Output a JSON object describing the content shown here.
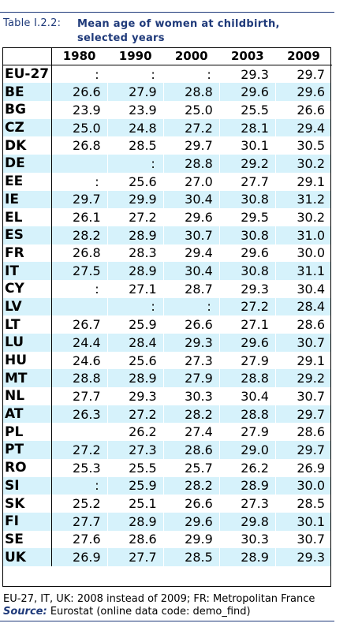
{
  "caption": {
    "label": "Table I.2.2:",
    "title": "Mean age of women at childbirth, selected years"
  },
  "table": {
    "columns": [
      "1980",
      "1990",
      "2000",
      "2003",
      "2009"
    ],
    "rows": [
      {
        "country": "EU-27",
        "values": [
          ":",
          ":",
          ":",
          "29.3",
          "29.7"
        ]
      },
      {
        "country": "BE",
        "values": [
          "26.6",
          "27.9",
          "28.8",
          "29.6",
          "29.6"
        ]
      },
      {
        "country": "BG",
        "values": [
          "23.9",
          "23.9",
          "25.0",
          "25.5",
          "26.6"
        ]
      },
      {
        "country": "CZ",
        "values": [
          "25.0",
          "24.8",
          "27.2",
          "28.1",
          "29.4"
        ]
      },
      {
        "country": "DK",
        "values": [
          "26.8",
          "28.5",
          "29.7",
          "30.1",
          "30.5"
        ]
      },
      {
        "country": "DE",
        "values": [
          "",
          ":",
          "28.8",
          "29.2",
          "30.2"
        ]
      },
      {
        "country": "EE",
        "values": [
          ":",
          "25.6",
          "27.0",
          "27.7",
          "29.1"
        ]
      },
      {
        "country": "IE",
        "values": [
          "29.7",
          "29.9",
          "30.4",
          "30.8",
          "31.2"
        ]
      },
      {
        "country": "EL",
        "values": [
          "26.1",
          "27.2",
          "29.6",
          "29.5",
          "30.2"
        ]
      },
      {
        "country": "ES",
        "values": [
          "28.2",
          "28.9",
          "30.7",
          "30.8",
          "31.0"
        ]
      },
      {
        "country": "FR",
        "values": [
          "26.8",
          "28.3",
          "29.4",
          "29.6",
          "30.0"
        ]
      },
      {
        "country": "IT",
        "values": [
          "27.5",
          "28.9",
          "30.4",
          "30.8",
          "31.1"
        ]
      },
      {
        "country": "CY",
        "values": [
          ":",
          "27.1",
          "28.7",
          "29.3",
          "30.4"
        ]
      },
      {
        "country": "LV",
        "values": [
          "",
          ":",
          ":",
          "27.2",
          "28.4"
        ]
      },
      {
        "country": "LT",
        "values": [
          "26.7",
          "25.9",
          "26.6",
          "27.1",
          "28.6"
        ]
      },
      {
        "country": "LU",
        "values": [
          "24.4",
          "28.4",
          "29.3",
          "29.6",
          "30.7"
        ]
      },
      {
        "country": "HU",
        "values": [
          "24.6",
          "25.6",
          "27.3",
          "27.9",
          "29.1"
        ]
      },
      {
        "country": "MT",
        "values": [
          "28.8",
          "28.9",
          "27.9",
          "28.8",
          "29.2"
        ]
      },
      {
        "country": "NL",
        "values": [
          "27.7",
          "29.3",
          "30.3",
          "30.4",
          "30.7"
        ]
      },
      {
        "country": "AT",
        "values": [
          "26.3",
          "27.2",
          "28.2",
          "28.8",
          "29.7"
        ]
      },
      {
        "country": "PL",
        "values": [
          "",
          "26.2",
          "27.4",
          "27.9",
          "28.6"
        ]
      },
      {
        "country": "PT",
        "values": [
          "27.2",
          "27.3",
          "28.6",
          "29.0",
          "29.7"
        ]
      },
      {
        "country": "RO",
        "values": [
          "25.3",
          "25.5",
          "25.7",
          "26.2",
          "26.9"
        ]
      },
      {
        "country": "SI",
        "values": [
          ":",
          "25.9",
          "28.2",
          "28.9",
          "30.0"
        ]
      },
      {
        "country": "SK",
        "values": [
          "25.2",
          "25.1",
          "26.6",
          "27.3",
          "28.5"
        ]
      },
      {
        "country": "FI",
        "values": [
          "27.7",
          "28.9",
          "29.6",
          "29.8",
          "30.1"
        ]
      },
      {
        "country": "SE",
        "values": [
          "27.6",
          "28.6",
          "29.9",
          "30.3",
          "30.7"
        ]
      },
      {
        "country": "UK",
        "values": [
          "26.9",
          "27.7",
          "28.5",
          "28.9",
          "29.3"
        ]
      }
    ]
  },
  "footnote": "EU-27, IT, UK: 2008 instead of 2009;  FR: Metropolitan France",
  "source": {
    "label": "Source:",
    "text": " Eurostat (online data code: demo_find)"
  },
  "colors": {
    "caption_blue": "#1f3a7a",
    "stripe": "#d6f2fb"
  }
}
